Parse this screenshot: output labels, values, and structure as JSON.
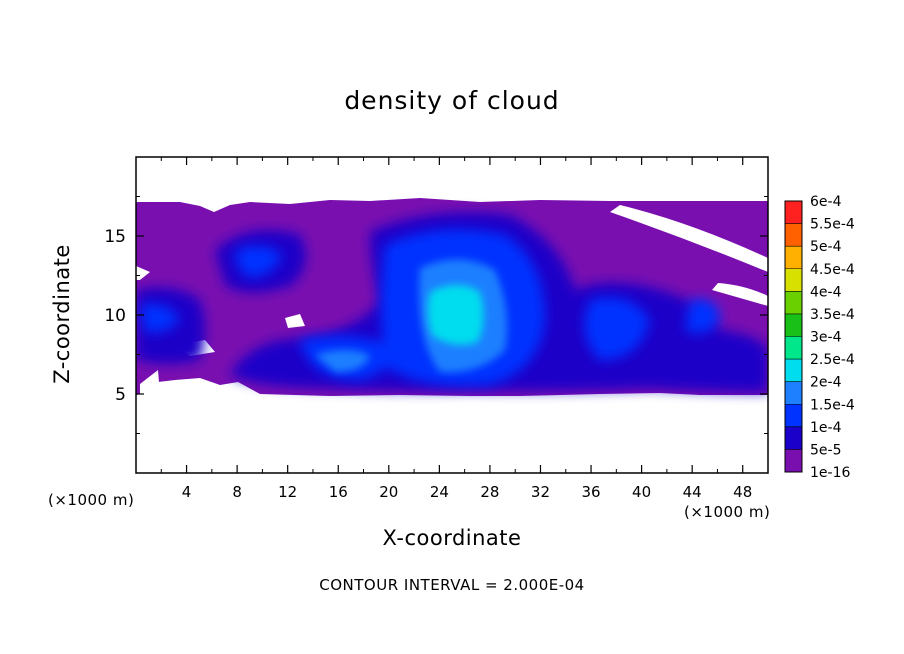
{
  "chart_data": {
    "type": "heatmap",
    "title": "density of cloud",
    "xlabel": "X-coordinate",
    "ylabel": "Z-coordinate",
    "x_unit": "(×1000 m)",
    "y_unit": "(×1000 m)",
    "xlim": [
      0,
      50
    ],
    "ylim": [
      0,
      20
    ],
    "x_ticks": [
      "4",
      "8",
      "12",
      "16",
      "20",
      "24",
      "28",
      "32",
      "36",
      "40",
      "44",
      "48"
    ],
    "y_ticks": [
      "5",
      "10",
      "15"
    ],
    "colorbar": {
      "levels": [
        "1e-16",
        "5e-5",
        "1e-4",
        "1.5e-4",
        "2e-4",
        "2.5e-4",
        "3e-4",
        "3.5e-4",
        "4e-4",
        "4.5e-4",
        "5e-4",
        "5.5e-4",
        "6e-4"
      ],
      "colors": [
        "#7a0fb0",
        "#1a00c8",
        "#0033ff",
        "#1e7fff",
        "#00ddee",
        "#00e68a",
        "#18c018",
        "#6ad000",
        "#d8e000",
        "#ffb000",
        "#ff6000",
        "#ff2020",
        "#ff8080"
      ]
    },
    "contour_interval": "CONTOUR INTERVAL = 2.000E-04",
    "cloud_layer": {
      "base_z": 5,
      "top_z": 17.2
    },
    "max_region": {
      "x_center": 25,
      "z_center": 11,
      "value_class": "2e-4"
    }
  }
}
